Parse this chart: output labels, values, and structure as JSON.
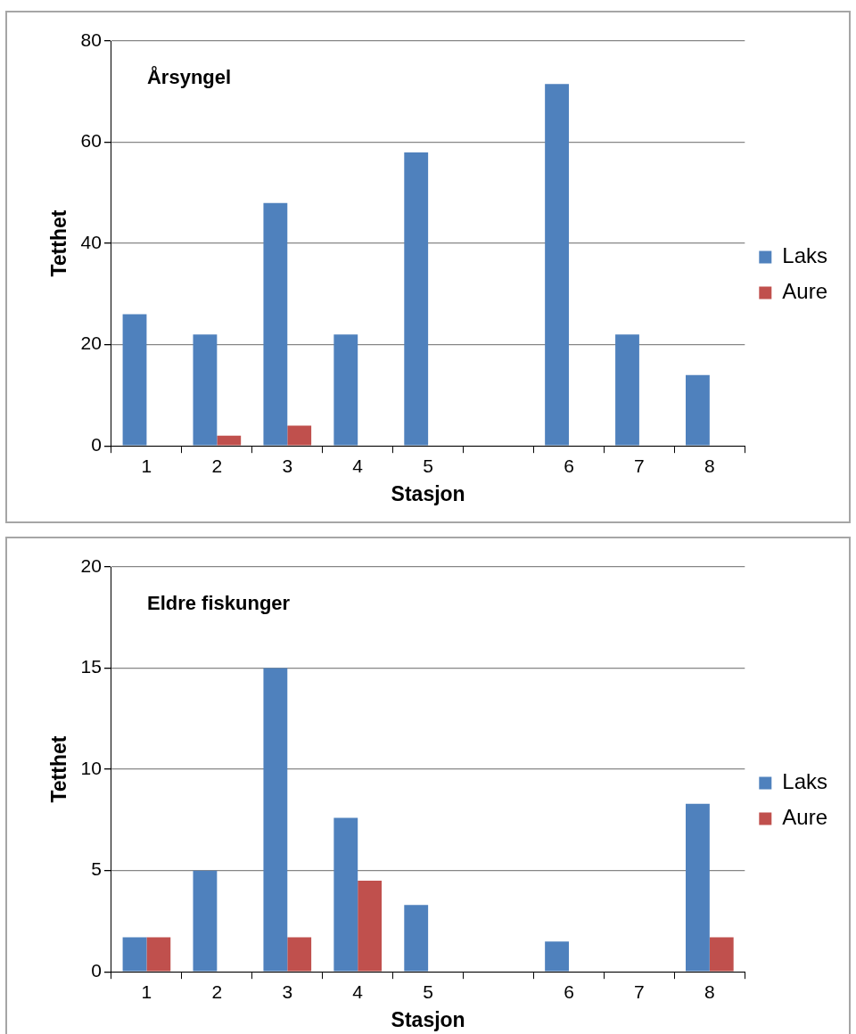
{
  "chart_data": [
    {
      "type": "bar",
      "title": "Årsyngel",
      "xlabel": "Stasjon",
      "ylabel": "Tetthet",
      "categories": [
        "1",
        "2",
        "3",
        "4",
        "5",
        null,
        "6",
        "7",
        "8"
      ],
      "series": [
        {
          "name": "Laks",
          "color": "#4f81bd",
          "values": [
            26,
            22,
            48,
            22,
            58,
            null,
            71.5,
            22,
            14
          ]
        },
        {
          "name": "Aure",
          "color": "#c0504d",
          "values": [
            0,
            2,
            4,
            0,
            0,
            null,
            0,
            0,
            0
          ]
        }
      ],
      "ylim": [
        0,
        80
      ],
      "yticks": [
        0,
        20,
        40,
        60,
        80
      ],
      "grid": "y",
      "legend": "right"
    },
    {
      "type": "bar",
      "title": "Eldre fiskunger",
      "xlabel": "Stasjon",
      "ylabel": "Tetthet",
      "categories": [
        "1",
        "2",
        "3",
        "4",
        "5",
        null,
        "6",
        "7",
        "8"
      ],
      "series": [
        {
          "name": "Laks",
          "color": "#4f81bd",
          "values": [
            1.7,
            5,
            15,
            7.6,
            3.3,
            null,
            1.5,
            0,
            8.3
          ]
        },
        {
          "name": "Aure",
          "color": "#c0504d",
          "values": [
            1.7,
            0,
            1.7,
            4.5,
            0,
            null,
            0,
            0,
            1.7
          ]
        }
      ],
      "ylim": [
        0,
        20
      ],
      "yticks": [
        0,
        5,
        10,
        15,
        20
      ],
      "grid": "y",
      "legend": "right"
    }
  ]
}
